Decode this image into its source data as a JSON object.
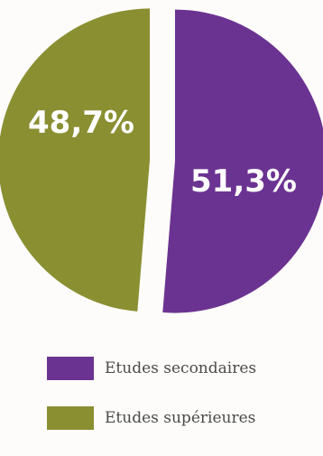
{
  "chart_data": {
    "type": "pie",
    "title": "",
    "slices": [
      {
        "label": "Etudes secondaires",
        "value": 51.3,
        "value_label": "51,3%",
        "color": "#6b3391"
      },
      {
        "label": "Etudes supérieures",
        "value": 48.7,
        "value_label": "48,7%",
        "color": "#8a8f32"
      }
    ],
    "legend_position": "bottom-left",
    "exploded": true
  }
}
